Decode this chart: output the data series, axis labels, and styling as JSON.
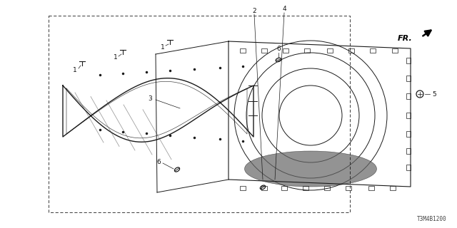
{
  "background_color": "#ffffff",
  "diagram_code": "T3M4B1200",
  "fr_label": "FR.",
  "line_color": "#1a1a1a",
  "text_color": "#111111",
  "label_fontsize": 6.5,
  "figsize": [
    6.4,
    3.2
  ],
  "dpi": 100
}
